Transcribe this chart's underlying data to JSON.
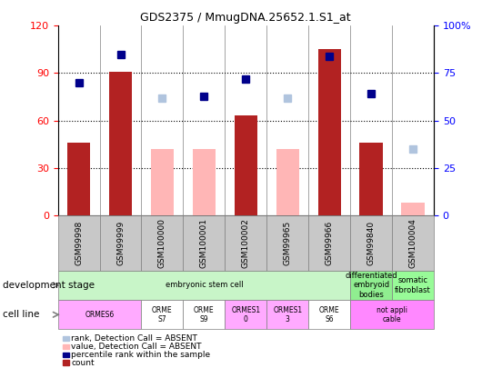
{
  "title": "GDS2375 / MmugDNA.25652.1.S1_at",
  "samples": [
    "GSM99998",
    "GSM99999",
    "GSM100000",
    "GSM100001",
    "GSM100002",
    "GSM99965",
    "GSM99966",
    "GSM99840",
    "GSM100004"
  ],
  "bar_values": [
    46,
    91,
    0,
    0,
    63,
    0,
    105,
    46,
    0
  ],
  "bar_absent_values": [
    0,
    0,
    42,
    42,
    0,
    42,
    0,
    0,
    8
  ],
  "rank_present": [
    70,
    85,
    -1,
    63,
    72,
    -1,
    84,
    64,
    -1
  ],
  "rank_absent": [
    -1,
    -1,
    62,
    -1,
    -1,
    62,
    -1,
    -1,
    35
  ],
  "ylim_left": [
    0,
    120
  ],
  "ylim_right": [
    0,
    100
  ],
  "yticks_left": [
    0,
    30,
    60,
    90,
    120
  ],
  "ytick_labels_left": [
    "0",
    "30",
    "60",
    "90",
    "120"
  ],
  "ytick_labels_right": [
    "0",
    "25",
    "50",
    "75",
    "100%"
  ],
  "yticks_right": [
    0,
    25,
    50,
    75,
    100
  ],
  "dev_stage_groups": [
    {
      "label": "embryonic stem cell",
      "start": 0,
      "end": 7,
      "color": "#c8f5c8"
    },
    {
      "label": "differentiated\nembryoid\nbodies",
      "start": 7,
      "end": 8,
      "color": "#90ee90"
    },
    {
      "label": "somatic\nfibroblast",
      "start": 8,
      "end": 9,
      "color": "#98fb98"
    }
  ],
  "cell_line_labels": [
    "ORMES6",
    "ORME\nS7",
    "ORME\nS9",
    "ORMES1\n0",
    "ORMES1\n3",
    "ORME\nS6",
    "not appli\ncable"
  ],
  "cell_line_colors": [
    "#ffaaff",
    "#ffffff",
    "#ffffff",
    "#ffaaff",
    "#ffaaff",
    "#ffffff",
    "#ff88ff"
  ],
  "cell_line_spans": [
    [
      0,
      2
    ],
    [
      2,
      3
    ],
    [
      3,
      4
    ],
    [
      4,
      5
    ],
    [
      5,
      6
    ],
    [
      6,
      7
    ],
    [
      7,
      9
    ]
  ],
  "legend_colors": [
    "#b22222",
    "#00008b",
    "#ffb6b6",
    "#b0c4de"
  ],
  "legend_labels": [
    "count",
    "percentile rank within the sample",
    "value, Detection Call = ABSENT",
    "rank, Detection Call = ABSENT"
  ],
  "bar_color_present": "#b22222",
  "bar_color_absent": "#ffb6b6",
  "rank_color_present": "#00008b",
  "rank_color_absent": "#b0c4de",
  "sample_bg_color": "#c8c8c8"
}
